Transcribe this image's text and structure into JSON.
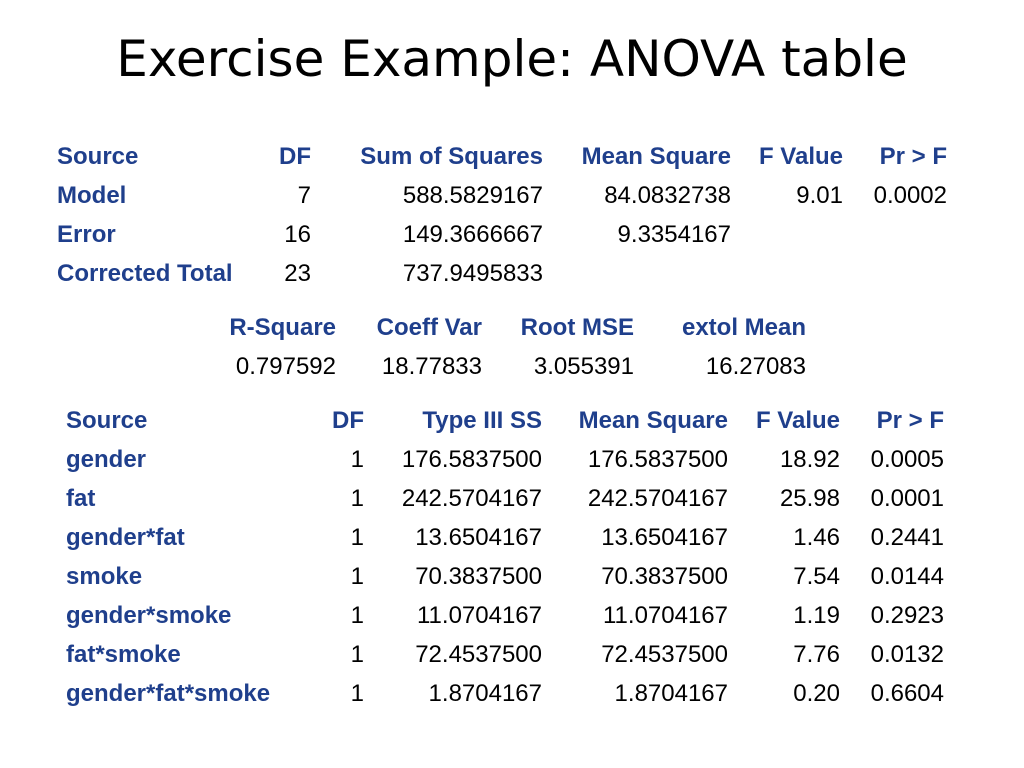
{
  "title": "Exercise Example: ANOVA table",
  "anova": {
    "headers": [
      "Source",
      "DF",
      "Sum of Squares",
      "Mean Square",
      "F Value",
      "Pr > F"
    ],
    "rows": [
      {
        "source": "Model",
        "df": "7",
        "ss": "588.5829167",
        "ms": "84.0832738",
        "f": "9.01",
        "p": "0.0002"
      },
      {
        "source": "Error",
        "df": "16",
        "ss": "149.3666667",
        "ms": "9.3354167",
        "f": "",
        "p": ""
      },
      {
        "source": "Corrected Total",
        "df": "23",
        "ss": "737.9495833",
        "ms": "",
        "f": "",
        "p": ""
      }
    ]
  },
  "fit": {
    "headers": [
      "R-Square",
      "Coeff Var",
      "Root MSE",
      "extol Mean"
    ],
    "values": [
      "0.797592",
      "18.77833",
      "3.055391",
      "16.27083"
    ]
  },
  "type3": {
    "headers": [
      "Source",
      "DF",
      "Type III SS",
      "Mean Square",
      "F Value",
      "Pr > F"
    ],
    "rows": [
      {
        "source": "gender",
        "df": "1",
        "ss": "176.5837500",
        "ms": "176.5837500",
        "f": "18.92",
        "p": "0.0005"
      },
      {
        "source": "fat",
        "df": "1",
        "ss": "242.5704167",
        "ms": "242.5704167",
        "f": "25.98",
        "p": "0.0001"
      },
      {
        "source": "gender*fat",
        "df": "1",
        "ss": "13.6504167",
        "ms": "13.6504167",
        "f": "1.46",
        "p": "0.2441"
      },
      {
        "source": "smoke",
        "df": "1",
        "ss": "70.3837500",
        "ms": "70.3837500",
        "f": "7.54",
        "p": "0.0144"
      },
      {
        "source": "gender*smoke",
        "df": "1",
        "ss": "11.0704167",
        "ms": "11.0704167",
        "f": "1.19",
        "p": "0.2923"
      },
      {
        "source": "fat*smoke",
        "df": "1",
        "ss": "72.4537500",
        "ms": "72.4537500",
        "f": "7.76",
        "p": "0.0132"
      },
      {
        "source": "gender*fat*smoke",
        "df": "1",
        "ss": "1.8704167",
        "ms": "1.8704167",
        "f": "0.20",
        "p": "0.6604"
      }
    ]
  }
}
